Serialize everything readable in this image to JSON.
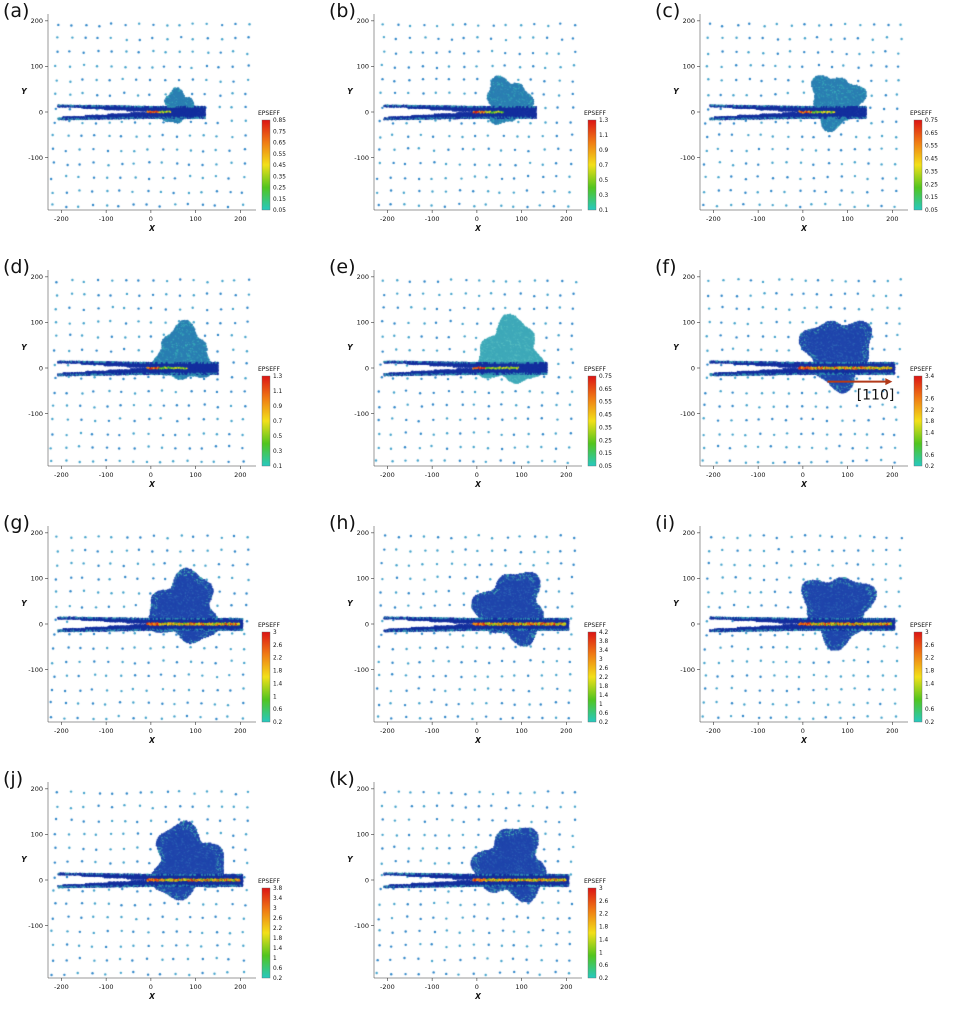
{
  "colorbar_label": "EPSEFF",
  "chart_data": {
    "type": "scatter",
    "description": "11-panel particle (atomistic) scatter figure of crack specimen with effective plastic strain EPSEFF colorbars; panels (a)-(k) show growing plastic/deformation zone at crack tip along [110].",
    "shared_axes": {
      "xlabel": "X",
      "ylabel": "Y",
      "x_ticks": [
        -200,
        -100,
        0,
        100,
        200
      ],
      "y_ticks": [
        200,
        100,
        0,
        -100
      ],
      "x_range": [
        -230,
        235
      ],
      "y_range": [
        -215,
        215
      ],
      "grid": false
    },
    "panels": [
      {
        "id": "a",
        "label": "(a)",
        "colorbar": {
          "label": "EPSEFF",
          "ticks": [
            "0.85",
            "0.75",
            "0.65",
            "0.55",
            "0.45",
            "0.35",
            "0.25",
            "0.15",
            "0.05"
          ]
        },
        "features": {
          "blob_cx": 62,
          "blob_cy": 10,
          "blob_r": 40,
          "band_right": 122,
          "band_halfwidth": 13,
          "crack_tip_x": 0,
          "hot_x1": 45,
          "blob_style": "teal"
        }
      },
      {
        "id": "b",
        "label": "(b)",
        "colorbar": {
          "label": "EPSEFF",
          "ticks": [
            "1.3",
            "1.1",
            "0.9",
            "0.7",
            "0.5",
            "0.3",
            "0.1"
          ]
        },
        "features": {
          "blob_cx": 68,
          "blob_cy": 25,
          "blob_r": 54,
          "band_right": 132,
          "band_halfwidth": 13,
          "crack_tip_x": 0,
          "hot_x1": 58,
          "blob_style": "teal"
        }
      },
      {
        "id": "c",
        "label": "(c)",
        "colorbar": {
          "label": "EPSEFF",
          "ticks": [
            "0.75",
            "0.65",
            "0.55",
            "0.45",
            "0.35",
            "0.25",
            "0.15",
            "0.05"
          ]
        },
        "features": {
          "blob_cx": 74,
          "blob_cy": 25,
          "blob_r": 63,
          "band_right": 142,
          "band_halfwidth": 13,
          "crack_tip_x": 0,
          "hot_x1": 70,
          "blob_style": "teal"
        }
      },
      {
        "id": "d",
        "label": "(d)",
        "colorbar": {
          "label": "EPSEFF",
          "ticks": [
            "1.3",
            "1.1",
            "0.9",
            "0.7",
            "0.5",
            "0.3",
            "0.1"
          ]
        },
        "features": {
          "blob_cx": 72,
          "blob_cy": 30,
          "blob_r": 68,
          "band_right": 150,
          "band_halfwidth": 13,
          "crack_tip_x": 0,
          "hot_x1": 80,
          "blob_style": "teal"
        }
      },
      {
        "id": "e",
        "label": "(e)",
        "colorbar": {
          "label": "EPSEFF",
          "ticks": [
            "0.75",
            "0.65",
            "0.55",
            "0.45",
            "0.35",
            "0.25",
            "0.15",
            "0.05"
          ]
        },
        "features": {
          "blob_cx": 75,
          "blob_cy": 33,
          "blob_r": 78,
          "band_right": 158,
          "band_halfwidth": 13,
          "crack_tip_x": 0,
          "hot_x1": 92,
          "blob_style": "teal-light"
        }
      },
      {
        "id": "f",
        "label": "(f)",
        "colorbar": {
          "label": "EPSEFF",
          "ticks": [
            "3.4",
            "3",
            "2.6",
            "2.2",
            "1.8",
            "1.4",
            "1",
            "0.6",
            "0.2"
          ]
        },
        "features": {
          "blob_cx": 78,
          "blob_cy": 36,
          "blob_r": 83,
          "band_right": 205,
          "band_halfwidth": 13,
          "crack_tip_x": 0,
          "hot_x1": 198,
          "blob_style": "dark"
        },
        "annotation": {
          "text": "[110]",
          "type": "arrow-right",
          "color": "#b23a1a",
          "arrow_y": -30,
          "arrow_x0": 55,
          "arrow_x1": 200
        }
      },
      {
        "id": "g",
        "label": "(g)",
        "colorbar": {
          "label": "EPSEFF",
          "ticks": [
            "3",
            "2.6",
            "2.2",
            "1.8",
            "1.4",
            "1",
            "0.6",
            "0.2"
          ]
        },
        "features": {
          "blob_cx": 76,
          "blob_cy": 34,
          "blob_r": 84,
          "band_right": 205,
          "band_halfwidth": 13,
          "crack_tip_x": 0,
          "hot_x1": 198,
          "blob_style": "dark"
        }
      },
      {
        "id": "h",
        "label": "(h)",
        "colorbar": {
          "label": "EPSEFF",
          "ticks": [
            "4.2",
            "3.8",
            "3.4",
            "3",
            "2.6",
            "2.2",
            "1.8",
            "1.4",
            "1",
            "0.6",
            "0.2"
          ]
        },
        "features": {
          "blob_cx": 78,
          "blob_cy": 36,
          "blob_r": 84,
          "band_right": 205,
          "band_halfwidth": 13,
          "crack_tip_x": 0,
          "hot_x1": 198,
          "blob_style": "dark"
        }
      },
      {
        "id": "i",
        "label": "(i)",
        "colorbar": {
          "label": "EPSEFF",
          "ticks": [
            "3",
            "2.6",
            "2.2",
            "1.8",
            "1.4",
            "1",
            "0.6",
            "0.2"
          ]
        },
        "features": {
          "blob_cx": 78,
          "blob_cy": 34,
          "blob_r": 84,
          "band_right": 205,
          "band_halfwidth": 13,
          "crack_tip_x": 0,
          "hot_x1": 198,
          "blob_style": "dark"
        }
      },
      {
        "id": "j",
        "label": "(j)",
        "colorbar": {
          "label": "EPSEFF",
          "ticks": [
            "3.8",
            "3.4",
            "3",
            "2.6",
            "2.2",
            "1.8",
            "1.4",
            "1",
            "0.6",
            "0.2"
          ]
        },
        "features": {
          "blob_cx": 80,
          "blob_cy": 38,
          "blob_r": 88,
          "band_right": 205,
          "band_halfwidth": 13,
          "crack_tip_x": 0,
          "hot_x1": 198,
          "blob_style": "dark"
        }
      },
      {
        "id": "k",
        "label": "(k)",
        "colorbar": {
          "label": "EPSEFF",
          "ticks": [
            "3",
            "2.6",
            "2.2",
            "1.8",
            "1.4",
            "1",
            "0.6",
            "0.2"
          ]
        },
        "features": {
          "blob_cx": 78,
          "blob_cy": 34,
          "blob_r": 86,
          "band_right": 205,
          "band_halfwidth": 13,
          "crack_tip_x": 0,
          "hot_x1": 198,
          "blob_style": "dark"
        }
      }
    ]
  },
  "palette": {
    "lattice1": "#2f86c8",
    "lattice2": "#46a4cc",
    "band": "#142f9e",
    "band_edge": "#2f8fb0",
    "blob_teal": "#2b7fb2",
    "blob_teal_var": "#36a8b8",
    "blob_teal_light": "#3fa9b9",
    "blob_teal_light_var": "#55bcc0",
    "blob_dark": "#2046ac",
    "blob_dark_var": "#2b62b4",
    "blob_fringe": "#3fa0b0",
    "hot_colors": [
      "#d81f12",
      "#ee6d12",
      "#f2a912",
      "#ecd81c",
      "#a8cf1e",
      "#4fc02c"
    ],
    "colorbar_stops": [
      "#dc1414",
      "#f07c14",
      "#f2e019",
      "#52c51e",
      "#27c9c0"
    ],
    "axis_color": "#333333",
    "text_color": "#111111"
  }
}
